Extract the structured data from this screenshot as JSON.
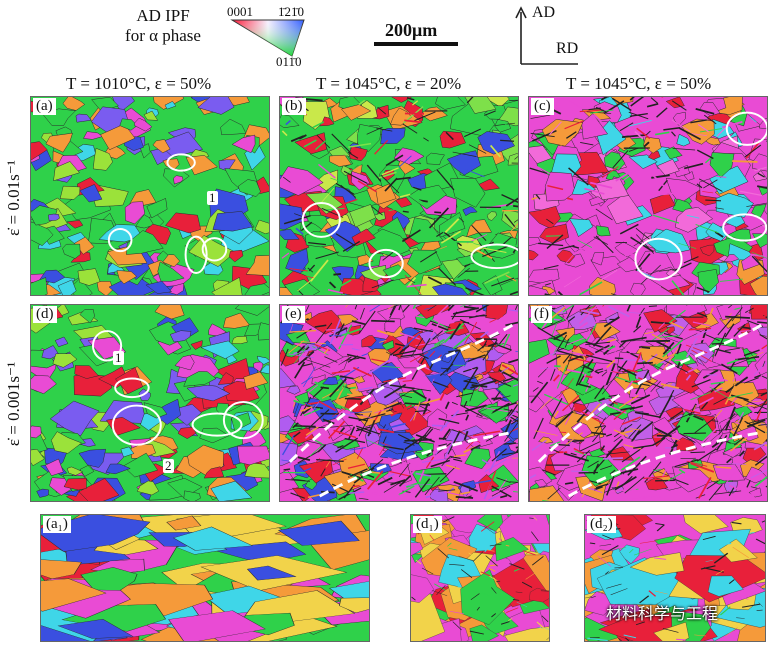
{
  "legend": {
    "title_line1": "AD IPF",
    "title_line2": "for α phase",
    "corner_top_left": "0001",
    "corner_top_right": "1̄21̄0",
    "corner_bottom": "011̄0"
  },
  "scale_bar": {
    "label": "200μm"
  },
  "axes": {
    "vertical": "AD",
    "horizontal": "RD"
  },
  "column_headers": [
    "T = 1010°C, ε = 50%",
    "T = 1045°C, ε = 20%",
    "T = 1045°C, ε = 50%"
  ],
  "row_labels": [
    "ε̇ = 0.01s⁻¹",
    "ε̇ = 0.001s⁻¹"
  ],
  "panels": [
    {
      "label": "(a)",
      "markers": [
        "1"
      ]
    },
    {
      "label": "(b)",
      "markers": []
    },
    {
      "label": "(c)",
      "markers": []
    },
    {
      "label": "(d)",
      "markers": [
        "1",
        "2"
      ]
    },
    {
      "label": "(e)",
      "markers": []
    },
    {
      "label": "(f)",
      "markers": []
    },
    {
      "label": "(a₁)",
      "markers": []
    },
    {
      "label": "(d₁)",
      "markers": []
    },
    {
      "label": "(d₂)",
      "markers": []
    }
  ],
  "watermark": "材料科学与工程",
  "colors": {
    "ipf_red": "#e8203a",
    "ipf_green": "#2fd14a",
    "ipf_blue": "#3a4fe0",
    "ipf_magenta": "#e94bd4",
    "ipf_orange": "#f59a3a",
    "ipf_cyan": "#3fd6e8",
    "highlight_outline": "#ffffff"
  }
}
